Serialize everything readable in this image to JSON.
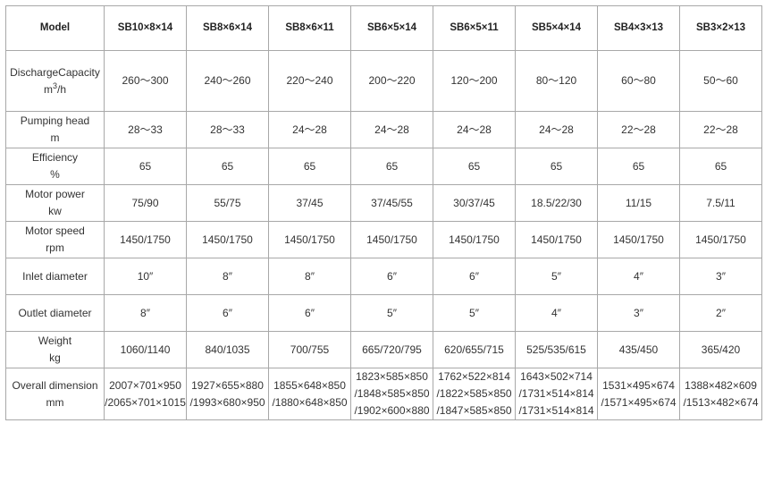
{
  "table": {
    "header": [
      "Model",
      "SB10×8×14",
      "SB8×6×14",
      "SB8×6×11",
      "SB6×5×14",
      "SB6×5×11",
      "SB5×4×14",
      "SB4×3×13",
      "SB3×2×13"
    ],
    "rows": [
      {
        "label": "DischargeCapacity",
        "unit": "m",
        "unit_sup": "3",
        "unit_after": "/h",
        "cells": [
          "260～300",
          "240～260",
          "220～240",
          "200～220",
          "120～200",
          "80～120",
          "60～80",
          "50～60"
        ]
      },
      {
        "label": "Pumping head",
        "unit": "m",
        "cells": [
          "28～33",
          "28～33",
          "24～28",
          "24～28",
          "24～28",
          "24～28",
          "22～28",
          "22～28"
        ]
      },
      {
        "label": "Efficiency",
        "unit": "%",
        "cells": [
          "65",
          "65",
          "65",
          "65",
          "65",
          "65",
          "65",
          "65"
        ]
      },
      {
        "label": "Motor power",
        "unit": "kw",
        "cells": [
          "75/90",
          "55/75",
          "37/45",
          "37/45/55",
          "30/37/45",
          "18.5/22/30",
          "11/15",
          "7.5/11"
        ]
      },
      {
        "label": "Motor speed",
        "unit": "rpm",
        "cells": [
          "1450/1750",
          "1450/1750",
          "1450/1750",
          "1450/1750",
          "1450/1750",
          "1450/1750",
          "1450/1750",
          "1450/1750"
        ]
      },
      {
        "label": "Inlet diameter",
        "cells": [
          "10″",
          "8″",
          "8″",
          "6″",
          "6″",
          "5″",
          "4″",
          "3″"
        ]
      },
      {
        "label": "Outlet diameter",
        "cells": [
          "8″",
          "6″",
          "6″",
          "5″",
          "5″",
          "4″",
          "3″",
          "2″"
        ]
      },
      {
        "label": "Weight",
        "unit": "kg",
        "cells": [
          "1060/1140",
          "840/1035",
          "700/755",
          "665/720/795",
          "620/655/715",
          "525/535/615",
          "435/450",
          "365/420"
        ]
      },
      {
        "label": "Overall dimension",
        "unit": "mm",
        "cells": [
          [
            "2007×701×950",
            "/2065×701×1015"
          ],
          [
            "1927×655×880",
            "/1993×680×950"
          ],
          [
            "1855×648×850",
            "/1880×648×850"
          ],
          [
            "1823×585×850",
            "/1848×585×850",
            "/1902×600×880"
          ],
          [
            "1762×522×814",
            "/1822×585×850",
            "/1847×585×850"
          ],
          [
            "1643×502×714",
            "/1731×514×814",
            "/1731×514×814"
          ],
          [
            "1531×495×674",
            "/1571×495×674"
          ],
          [
            "1388×482×609",
            "/1513×482×674"
          ]
        ]
      }
    ]
  }
}
